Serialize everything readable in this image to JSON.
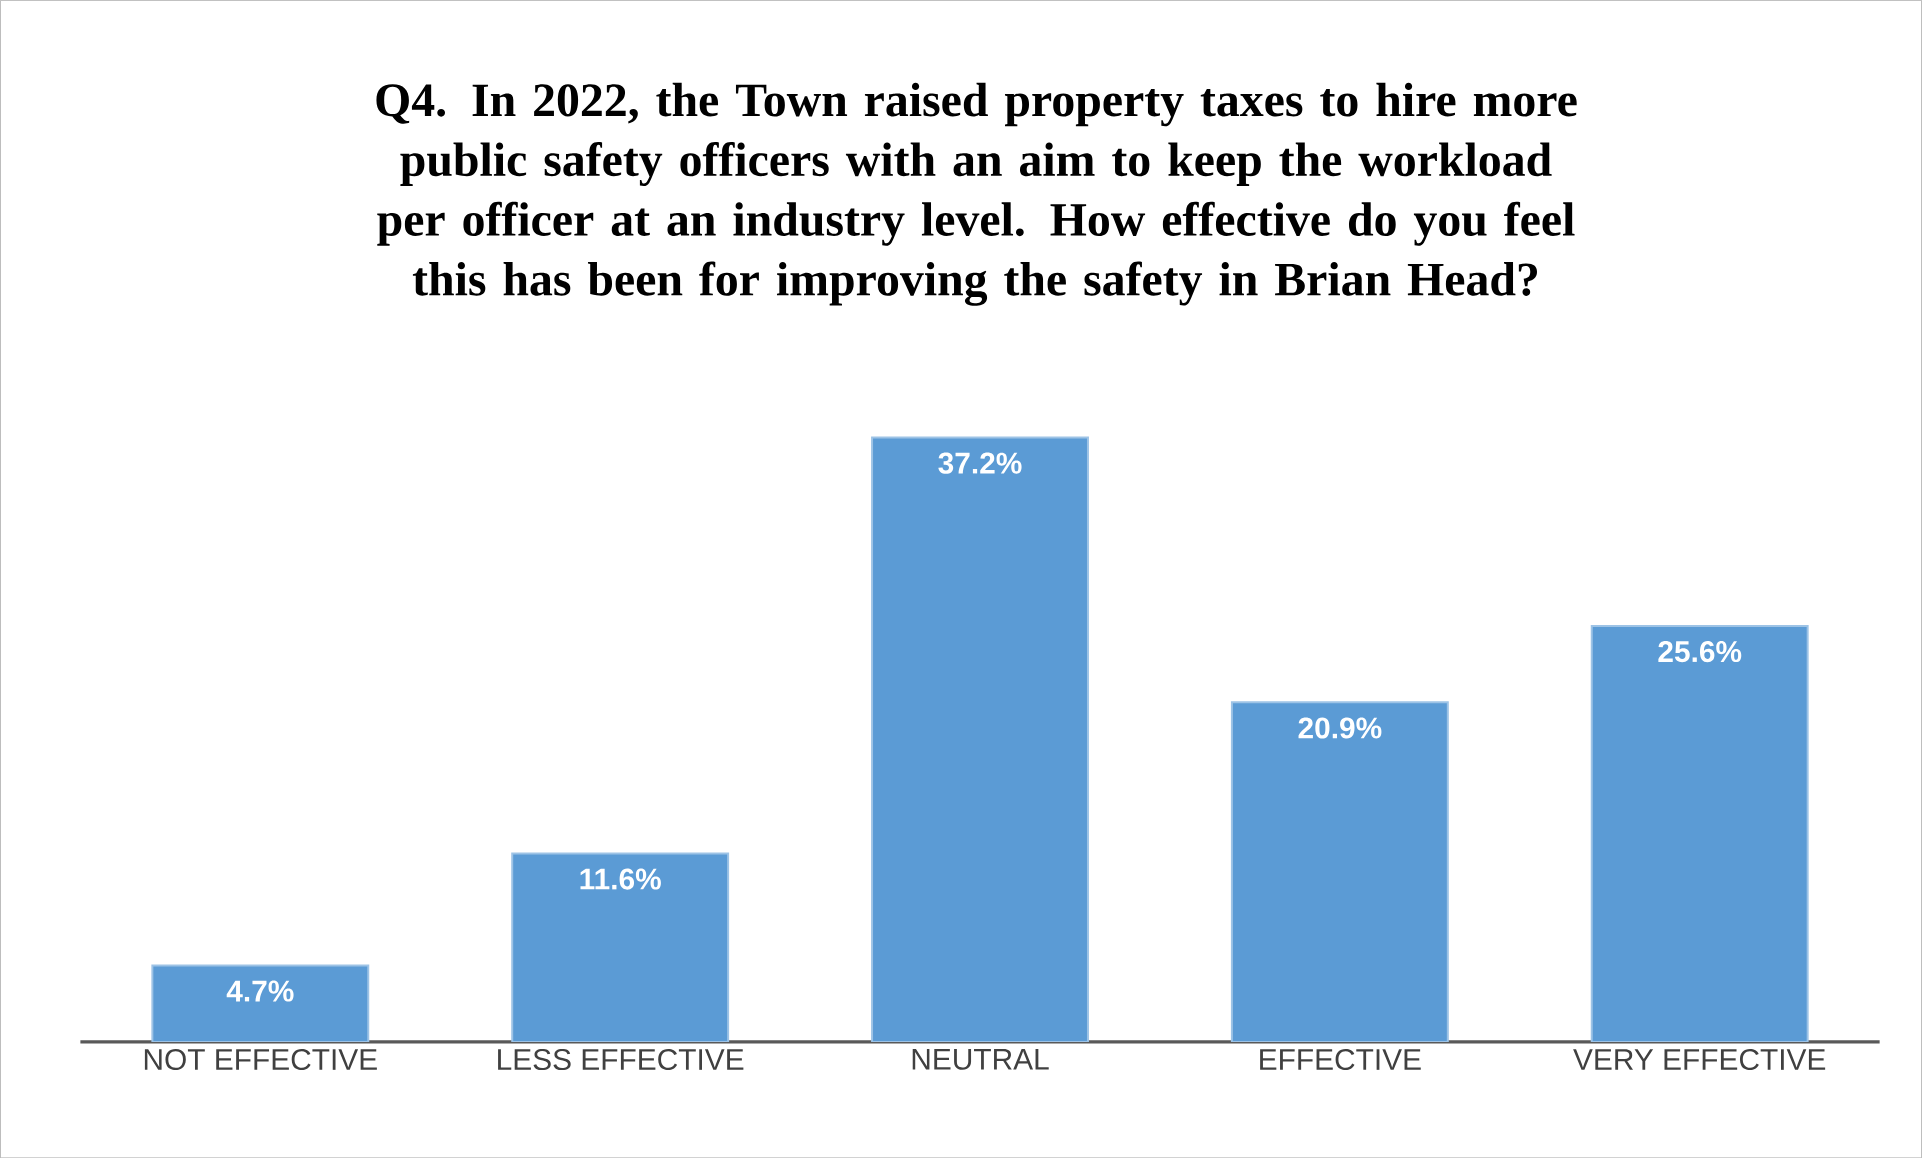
{
  "chart_data": {
    "type": "bar",
    "title": "Q4.  In 2022, the Town raised property taxes to hire more public safety officers with an aim to keep the workload per officer at an industry level.  How effective do you feel this has been for improving the  safety in Brian Head?",
    "categories": [
      "NOT EFFECTIVE",
      "LESS EFFECTIVE",
      "NEUTRAL",
      "EFFECTIVE",
      "VERY EFFECTIVE"
    ],
    "values": [
      4.7,
      11.6,
      37.2,
      20.9,
      25.6
    ],
    "value_labels": [
      "4.7%",
      "11.6%",
      "37.2%",
      "20.9%",
      "25.6%"
    ],
    "color": "#5b9bd5"
  }
}
